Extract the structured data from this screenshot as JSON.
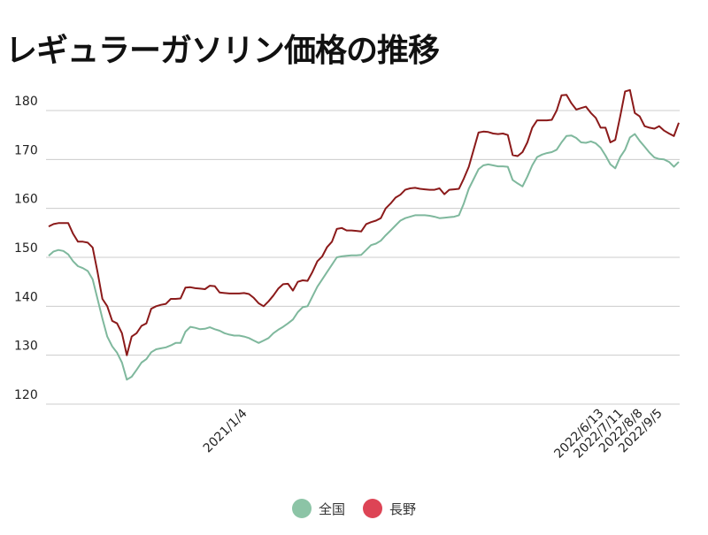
{
  "title": "レギュラーガソリン価格の推移",
  "colors": {
    "national_line": "#7fb89d",
    "nagano_line": "#8b1a1a",
    "national_swatch": "#8cc4a6",
    "nagano_swatch": "#dd4455",
    "grid": "#cccccc",
    "text": "#222222"
  },
  "chart_data": {
    "type": "line",
    "title": "レギュラーガソリン価格の推移",
    "xlabel": "",
    "ylabel": "",
    "ylim": [
      120,
      185
    ],
    "yticks": [
      120,
      130,
      140,
      150,
      160,
      170,
      180
    ],
    "x_tick_labels": [
      {
        "label": "2021/1/4",
        "index": 40
      },
      {
        "label": "2022/6/13",
        "index": 113
      },
      {
        "label": "2022/7/11",
        "index": 117
      },
      {
        "label": "2022/8/8",
        "index": 121
      },
      {
        "label": "2022/9/5",
        "index": 125
      }
    ],
    "grid": true,
    "legend_position": "bottom",
    "series": [
      {
        "name": "全国",
        "values": [
          150.3,
          151.2,
          151.5,
          151.3,
          150.6,
          149.2,
          148.2,
          147.8,
          147.2,
          145.5,
          141.5,
          137.5,
          133.8,
          131.8,
          130.5,
          128.5,
          125.0,
          125.6,
          127.0,
          128.5,
          129.2,
          130.6,
          131.2,
          131.4,
          131.6,
          132.0,
          132.5,
          132.5,
          134.8,
          135.8,
          135.6,
          135.3,
          135.4,
          135.7,
          135.3,
          135.0,
          134.5,
          134.2,
          134.0,
          134.0,
          133.8,
          133.5,
          133.0,
          132.5,
          133.0,
          133.5,
          134.5,
          135.2,
          135.8,
          136.5,
          137.3,
          138.8,
          139.8,
          140.0,
          142.0,
          144.0,
          145.5,
          147.0,
          148.5,
          150.0,
          150.2,
          150.3,
          150.4,
          150.4,
          150.5,
          151.5,
          152.5,
          152.8,
          153.4,
          154.5,
          155.5,
          156.5,
          157.5,
          158.0,
          158.3,
          158.6,
          158.6,
          158.6,
          158.5,
          158.3,
          158.0,
          158.1,
          158.2,
          158.3,
          158.6,
          161.0,
          164.0,
          166.0,
          168.0,
          168.8,
          169.0,
          168.8,
          168.6,
          168.6,
          168.5,
          165.8,
          165.1,
          164.5,
          166.5,
          168.8,
          170.5,
          171.0,
          171.3,
          171.5,
          172.0,
          173.5,
          174.8,
          174.9,
          174.4,
          173.5,
          173.4,
          173.7,
          173.3,
          172.4,
          170.8,
          169.0,
          168.2,
          170.5,
          172.0,
          174.5,
          175.2,
          173.8,
          172.6,
          171.4,
          170.4,
          170.1,
          170.0,
          169.5,
          168.5,
          169.5
        ]
      },
      {
        "name": "長野",
        "values": [
          156.3,
          156.8,
          157.0,
          157.0,
          157.0,
          154.8,
          153.2,
          153.2,
          153.0,
          152.0,
          147.0,
          141.5,
          140.0,
          137.0,
          136.5,
          134.5,
          130.0,
          133.8,
          134.5,
          136.0,
          136.5,
          139.5,
          140.0,
          140.3,
          140.5,
          141.5,
          141.5,
          141.6,
          143.8,
          143.9,
          143.7,
          143.6,
          143.5,
          144.2,
          144.1,
          142.8,
          142.7,
          142.6,
          142.6,
          142.6,
          142.7,
          142.5,
          141.7,
          140.6,
          140.0,
          141.0,
          142.2,
          143.6,
          144.5,
          144.6,
          143.2,
          145.0,
          145.3,
          145.2,
          147.0,
          149.2,
          150.2,
          152.1,
          153.2,
          155.8,
          156.0,
          155.5,
          155.5,
          155.4,
          155.3,
          156.8,
          157.2,
          157.5,
          158.0,
          160.0,
          161.0,
          162.2,
          162.8,
          163.8,
          164.1,
          164.2,
          164.0,
          163.9,
          163.8,
          163.8,
          164.1,
          162.9,
          163.8,
          163.9,
          164.0,
          166.1,
          168.5,
          172.0,
          175.5,
          175.7,
          175.6,
          175.3,
          175.2,
          175.3,
          175.0,
          170.9,
          170.7,
          171.5,
          173.5,
          176.5,
          178.0,
          178.0,
          178.0,
          178.1,
          180.0,
          183.1,
          183.2,
          181.5,
          180.2,
          180.5,
          180.8,
          179.5,
          178.5,
          176.5,
          176.5,
          173.5,
          174.0,
          178.8,
          183.9,
          184.2,
          179.5,
          178.8,
          176.8,
          176.5,
          176.3,
          176.8,
          175.9,
          175.3,
          174.8,
          177.5
        ]
      }
    ]
  }
}
